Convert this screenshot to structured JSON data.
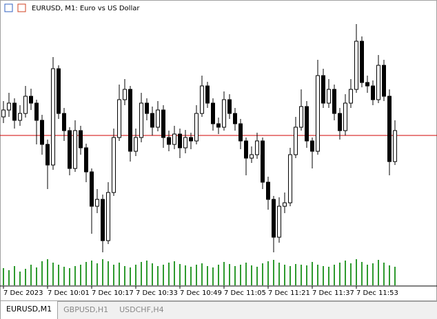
{
  "chart_data": {
    "type": "candlestick",
    "title": "EURUSD, M1:  Euro vs US Dollar",
    "categories": [
      "7 Dec 2023",
      null,
      null,
      null,
      null,
      null,
      null,
      null,
      "7 Dec 10:01",
      null,
      null,
      null,
      null,
      null,
      null,
      null,
      "7 Dec 10:17",
      null,
      null,
      null,
      null,
      null,
      null,
      null,
      "7 Dec 10:33",
      null,
      null,
      null,
      null,
      null,
      null,
      null,
      "7 Dec 10:49",
      null,
      null,
      null,
      null,
      null,
      null,
      null,
      "7 Dec 11:05",
      null,
      null,
      null,
      null,
      null,
      null,
      null,
      "7 Dec 11:21",
      null,
      null,
      null,
      null,
      null,
      null,
      null,
      "7 Dec 11:37",
      null,
      null,
      null,
      null,
      null,
      null,
      null,
      "7 Dec 11:53",
      null,
      null,
      null,
      null,
      null,
      null,
      null
    ],
    "open": [
      245,
      255,
      265,
      240,
      250,
      275,
      265,
      240,
      205,
      175,
      315,
      250,
      225,
      170,
      225,
      200,
      165,
      115,
      125,
      65,
      135,
      215,
      270,
      285,
      195,
      215,
      265,
      250,
      230,
      255,
      215,
      205,
      220,
      200,
      215,
      210,
      250,
      290,
      265,
      235,
      230,
      270,
      250,
      235,
      210,
      185,
      190,
      210,
      150,
      125,
      70,
      115,
      120,
      190,
      230,
      260,
      210,
      195,
      305,
      265,
      285,
      250,
      225,
      265,
      285,
      355,
      295,
      290,
      270,
      320,
      275,
      180
    ],
    "high": [
      268,
      280,
      272,
      262,
      290,
      286,
      270,
      248,
      212,
      332,
      320,
      258,
      230,
      240,
      232,
      206,
      170,
      140,
      132,
      150,
      228,
      292,
      300,
      290,
      228,
      280,
      272,
      260,
      268,
      262,
      225,
      232,
      228,
      226,
      222,
      262,
      305,
      296,
      272,
      244,
      282,
      278,
      258,
      242,
      215,
      202,
      222,
      215,
      158,
      130,
      128,
      135,
      200,
      245,
      285,
      268,
      215,
      328,
      315,
      300,
      292,
      258,
      278,
      300,
      380,
      362,
      305,
      298,
      335,
      328,
      285,
      240
    ],
    "low": [
      236,
      245,
      228,
      232,
      244,
      255,
      205,
      190,
      140,
      168,
      242,
      210,
      160,
      165,
      190,
      150,
      75,
      105,
      48,
      60,
      130,
      210,
      262,
      180,
      188,
      208,
      240,
      218,
      224,
      200,
      195,
      198,
      185,
      192,
      198,
      205,
      245,
      258,
      225,
      220,
      225,
      242,
      225,
      198,
      160,
      178,
      184,
      140,
      110,
      48,
      62,
      105,
      115,
      185,
      225,
      200,
      170,
      190,
      258,
      258,
      240,
      212,
      218,
      258,
      280,
      288,
      280,
      262,
      265,
      268,
      160,
      175
    ],
    "close": [
      255,
      265,
      240,
      250,
      275,
      265,
      240,
      205,
      175,
      315,
      250,
      225,
      170,
      225,
      200,
      165,
      115,
      125,
      65,
      135,
      215,
      270,
      285,
      195,
      215,
      265,
      250,
      230,
      255,
      215,
      205,
      220,
      200,
      215,
      210,
      250,
      290,
      265,
      235,
      230,
      270,
      250,
      235,
      210,
      185,
      190,
      210,
      150,
      125,
      70,
      115,
      120,
      190,
      230,
      260,
      210,
      195,
      305,
      265,
      285,
      250,
      225,
      265,
      285,
      355,
      295,
      290,
      270,
      320,
      275,
      180,
      225
    ],
    "volume": [
      25,
      22,
      28,
      20,
      24,
      30,
      26,
      35,
      38,
      33,
      30,
      27,
      25,
      28,
      30,
      34,
      36,
      32,
      38,
      35,
      30,
      33,
      28,
      26,
      30,
      34,
      36,
      32,
      28,
      30,
      33,
      35,
      31,
      29,
      27,
      30,
      32,
      28,
      26,
      30,
      34,
      31,
      28,
      30,
      33,
      29,
      27,
      32,
      35,
      37,
      33,
      30,
      28,
      31,
      30,
      29,
      34,
      30,
      28,
      27,
      30,
      33,
      36,
      32,
      38,
      34,
      30,
      32,
      37,
      33,
      29,
      27
    ],
    "ylim": [
      0,
      400
    ],
    "price_line": 218,
    "price_line_color": "#d00000",
    "volume_color": "#2e9a2e",
    "candle_color": "#000000"
  },
  "tabs": [
    "EURUSD,M1",
    "GBPUSD,H1",
    "USDCHF,H4"
  ]
}
